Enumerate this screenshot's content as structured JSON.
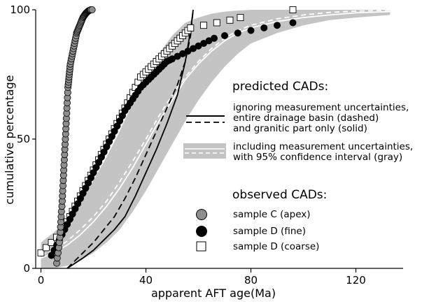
{
  "chart_data": {
    "type": "line",
    "xlabel": "apparent AFT age(Ma)",
    "ylabel": "cumulative percentage",
    "xlim": [
      -2,
      138
    ],
    "ylim": [
      0,
      100
    ],
    "xticks": [
      0,
      40,
      80,
      120
    ],
    "yticks": [
      0,
      50,
      100
    ],
    "xtick_labels": [
      "0",
      "40",
      "80",
      "120"
    ],
    "ytick_labels": [
      "0",
      "50",
      "100"
    ],
    "grid": false,
    "legend": {
      "position": "right",
      "predicted_title": "predicted CADs:",
      "predicted_line1": "ignoring measurement uncertainties,",
      "predicted_line2": "entire drainage basin (dashed)",
      "predicted_line3": "and granitic part only (solid)",
      "band_line1": "including measurement uncertainties,",
      "band_line2": "with 95% confidence interval (gray)",
      "observed_title": "observed CADs:",
      "sample_c": "sample C (apex)",
      "sample_d_fine": "sample D (fine)",
      "sample_d_coarse": "sample D (coarse)"
    },
    "colors": {
      "band": "#c4c4c4",
      "sample_c_fill": "#8e8e8e",
      "sample_d_fine_fill": "#000000",
      "sample_d_coarse_fill": "#ffffff",
      "prediction_band_median": "#ffffff"
    },
    "band": {
      "x": [
        0,
        5,
        10,
        15,
        20,
        25,
        30,
        35,
        40,
        45,
        50,
        55,
        60,
        65,
        70,
        75,
        80,
        90,
        100,
        110,
        120,
        133
      ],
      "lower": [
        0,
        0,
        1,
        3,
        6,
        10,
        15,
        22,
        30,
        39,
        48,
        57,
        65,
        72,
        78,
        83,
        87,
        91,
        94,
        96,
        97,
        98
      ],
      "upper": [
        10,
        14,
        19,
        26,
        34,
        43,
        53,
        64,
        74,
        83,
        90,
        95,
        97,
        98.5,
        99.3,
        99.7,
        100,
        100,
        100,
        100,
        100,
        100
      ]
    },
    "series": [
      {
        "kind": "band-median-solid",
        "x": [
          0,
          5,
          10,
          15,
          20,
          25,
          30,
          35,
          40,
          45,
          50,
          55,
          60,
          65,
          70,
          75,
          80,
          90,
          100,
          110,
          120,
          133
        ],
        "y": [
          4,
          6,
          9,
          13,
          18,
          24,
          31,
          39,
          48,
          57,
          65,
          73,
          79,
          84,
          88,
          91,
          93,
          95.5,
          97,
          98,
          98.8,
          99.3
        ]
      },
      {
        "kind": "band-median-dashed",
        "x": [
          0,
          5,
          10,
          15,
          20,
          25,
          30,
          35,
          40,
          45,
          50,
          55,
          60,
          65,
          70,
          75,
          80,
          90,
          100,
          110,
          120,
          133
        ],
        "y": [
          5,
          7.5,
          10.5,
          15,
          20,
          26,
          33.5,
          41.5,
          50,
          59,
          67,
          74,
          80,
          85,
          89,
          92,
          94,
          96.5,
          98,
          99,
          99.5,
          99.8
        ]
      },
      {
        "kind": "predicted-solid",
        "x": [
          10,
          13,
          16,
          20,
          24,
          28,
          32,
          36,
          40,
          44,
          48,
          52,
          55,
          57,
          58
        ],
        "y": [
          0,
          2,
          4,
          7,
          11,
          15,
          20,
          28,
          37,
          46,
          56,
          67,
          80,
          92,
          100
        ]
      },
      {
        "kind": "predicted-dashed",
        "x": [
          10,
          13,
          16,
          20,
          24,
          28,
          32,
          36,
          40,
          44,
          48,
          52,
          55,
          57,
          58
        ],
        "y": [
          0,
          3,
          6,
          10,
          15,
          20,
          27,
          35,
          44,
          53,
          62,
          71,
          80,
          90,
          100
        ]
      },
      {
        "name": "sample C (apex)",
        "marker": "circle-gray",
        "x": [
          6,
          6.2,
          6.5,
          6.8,
          7,
          7.2,
          7.4,
          7.5,
          7.6,
          7.7,
          7.8,
          8,
          8.1,
          8.2,
          8.3,
          8.4,
          8.5,
          8.6,
          8.7,
          8.8,
          8.9,
          9,
          9.1,
          9.2,
          9.3,
          9.4,
          9.5,
          9.6,
          9.7,
          9.8,
          9.9,
          10,
          10.1,
          10.2,
          10.3,
          10.4,
          10.5,
          10.6,
          10.7,
          10.8,
          10.9,
          11,
          11.1,
          11.2,
          11.4,
          11.6,
          11.8,
          12,
          12.2,
          12.4,
          12.6,
          12.8,
          13,
          13.2,
          13.4,
          13.6,
          13.8,
          14,
          14.2,
          14.4,
          14.6,
          14.8,
          15,
          15.2,
          15.4,
          15.6,
          15.8,
          16,
          16.2,
          16.4,
          16.6,
          16.8,
          17,
          17.2,
          17.4,
          17.6,
          17.8,
          18,
          18.2,
          18.4,
          18.6,
          18.8,
          19,
          19.5
        ],
        "y": [
          2,
          4,
          6,
          8,
          10,
          12,
          14,
          16,
          18,
          20,
          22,
          24,
          26,
          28,
          30,
          32,
          34,
          36,
          38,
          40,
          42,
          44,
          46,
          48,
          50,
          52,
          54,
          56,
          58,
          60,
          62,
          64,
          66,
          68,
          70,
          71,
          72,
          73,
          74,
          75,
          76,
          77,
          78,
          79,
          80,
          81,
          82,
          83,
          84,
          85,
          86,
          87,
          88,
          89,
          90,
          91,
          91.5,
          92,
          92.5,
          93,
          93.5,
          94,
          94.5,
          95,
          95.5,
          96,
          96.5,
          97,
          97.3,
          97.6,
          97.9,
          98.2,
          98.5,
          98.7,
          98.9,
          99.1,
          99.3,
          99.5,
          99.6,
          99.7,
          99.8,
          99.9,
          100,
          100
        ]
      },
      {
        "name": "sample D (fine)",
        "marker": "circle-black",
        "x": [
          4,
          5,
          6,
          7,
          8,
          9,
          10,
          11,
          12,
          13,
          14,
          15,
          16,
          17,
          18,
          19,
          20,
          21,
          22,
          23,
          24,
          25,
          26,
          27,
          28,
          29,
          30,
          31,
          32,
          33,
          34,
          35,
          36,
          37,
          38,
          39,
          40,
          41,
          42,
          43,
          44,
          45,
          46,
          47,
          48,
          49,
          50,
          52,
          54,
          56,
          58,
          60,
          62,
          64,
          66,
          70,
          75,
          80,
          85,
          90,
          96
        ],
        "y": [
          5,
          7,
          9,
          11,
          13,
          15,
          17,
          19,
          21,
          23,
          25,
          27,
          29,
          31,
          33,
          35,
          37,
          39,
          41,
          43,
          45,
          47,
          49,
          51,
          53,
          55,
          57,
          59,
          61,
          62.5,
          64,
          65.5,
          67,
          68.5,
          70,
          71,
          72,
          73,
          74,
          75,
          76,
          77,
          78,
          79,
          80,
          80.5,
          81,
          82,
          83,
          84,
          85,
          86,
          87,
          88,
          89,
          90,
          91,
          92,
          93,
          94,
          95
        ]
      },
      {
        "name": "sample D (coarse)",
        "marker": "square-open",
        "x": [
          0,
          2,
          4,
          6,
          8,
          9,
          10,
          11,
          12,
          13,
          14,
          15,
          16,
          17,
          18,
          19,
          20,
          21,
          22,
          23,
          24,
          25,
          26,
          27,
          28,
          29,
          30,
          31,
          32,
          33,
          34,
          35,
          36,
          37,
          38,
          39,
          40,
          41,
          42,
          43,
          44,
          45,
          46,
          47,
          48,
          49,
          50,
          51,
          52,
          53,
          54,
          55,
          56,
          57,
          62,
          67,
          72,
          76,
          96
        ],
        "y": [
          6,
          8,
          10,
          12,
          14,
          16,
          18,
          20,
          22,
          24,
          26,
          28,
          30,
          32,
          34,
          36,
          38,
          40,
          42,
          44,
          46,
          48,
          50,
          52,
          54,
          56,
          58,
          60,
          62,
          64,
          66,
          68,
          70,
          72,
          74,
          75,
          76,
          77,
          78,
          79,
          80,
          81,
          82,
          83,
          84,
          85,
          86,
          87,
          88,
          89,
          90,
          91,
          92,
          93,
          94,
          95,
          96,
          97,
          100
        ]
      }
    ]
  }
}
